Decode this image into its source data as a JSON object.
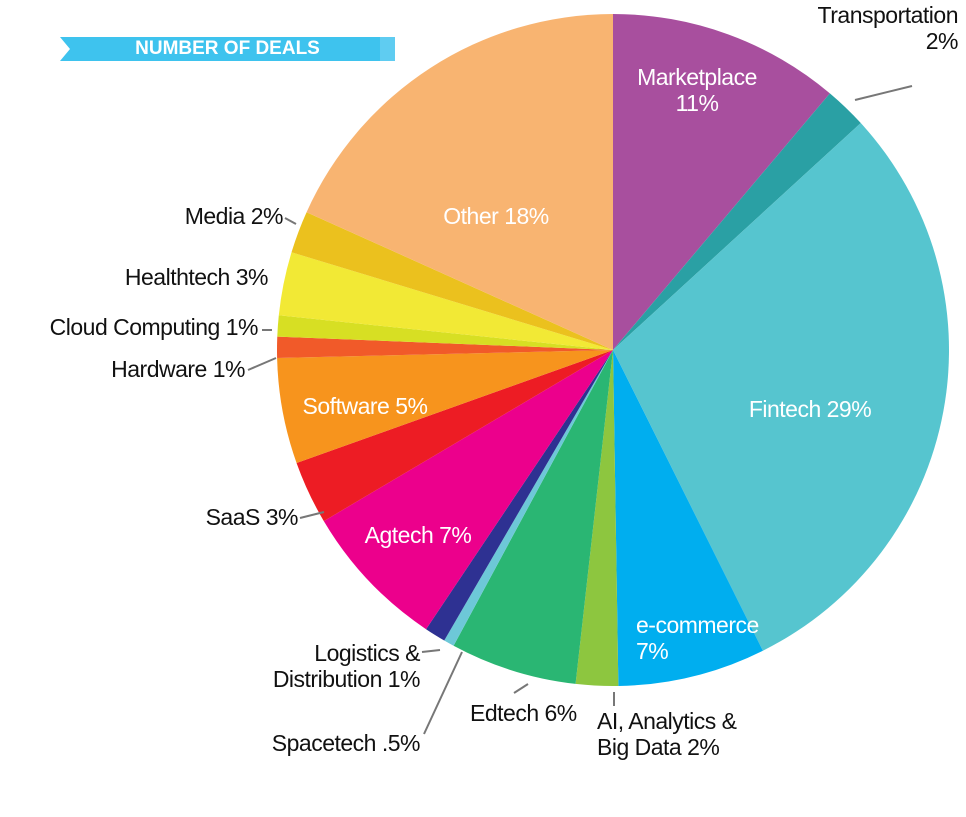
{
  "chart_data": {
    "type": "pie",
    "title": "NUMBER OF DEALS",
    "categories": [
      "Marketplace",
      "Transportation",
      "Fintech",
      "e-commerce",
      "AI, Analytics & Big Data",
      "Edtech",
      "Spacetech",
      "Logistics & Distribution",
      "Agtech",
      "SaaS",
      "Software",
      "Hardware",
      "Cloud Computing",
      "Healthtech",
      "Media",
      "Other"
    ],
    "values": [
      11,
      2,
      29,
      7,
      2,
      6,
      0.5,
      1,
      7,
      3,
      5,
      1,
      1,
      3,
      2,
      18
    ],
    "value_labels": [
      "11%",
      "2%",
      "29%",
      "7%",
      "2%",
      "6%",
      ".5%",
      "1%",
      "7%",
      "3%",
      "5%",
      "1%",
      "1%",
      "3%",
      "2%",
      "18%"
    ],
    "colors": [
      "#a84f9e",
      "#2aa0a4",
      "#56c5cf",
      "#00aeef",
      "#8dc63f",
      "#2ab673",
      "#6dc8d8",
      "#2e3192",
      "#ec008c",
      "#ed1c24",
      "#f7941d",
      "#f15a29",
      "#d7df23",
      "#f2e935",
      "#ebc11e",
      "#f8b471"
    ]
  }
}
